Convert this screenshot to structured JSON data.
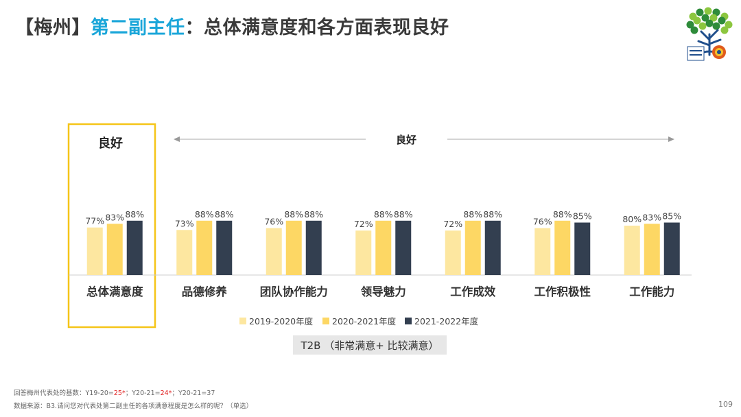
{
  "title": {
    "bracket": "【梅州】",
    "subject": "第二副主任",
    "rest": "：总体满意度和各方面表现良好"
  },
  "chart_data": {
    "type": "bar",
    "categories": [
      "总体满意度",
      "品德修养",
      "团队协作能力",
      "领导魅力",
      "工作成效",
      "工作积极性",
      "工作能力"
    ],
    "series": [
      {
        "name": "2019-2020年度",
        "color": "#fde7a0",
        "values": [
          77,
          73,
          76,
          72,
          72,
          76,
          80
        ]
      },
      {
        "name": "2020-2021年度",
        "color": "#fdd764",
        "values": [
          83,
          88,
          88,
          88,
          88,
          88,
          83
        ]
      },
      {
        "name": "2021-2022年度",
        "color": "#333f50",
        "values": [
          88,
          88,
          88,
          88,
          88,
          85,
          85
        ]
      }
    ],
    "value_suffix": "%",
    "legend_position": "bottom",
    "annotations": {
      "highlight_label": "良好",
      "range_label": "良好"
    }
  },
  "t2b_label": "T2B （非常满意+ 比较满意）",
  "footnotes": {
    "base_prefix": "回答梅州代表处的基数：Y19-20=",
    "base_y1920": "25*",
    "base_mid": "；Y20-21=",
    "base_y2021": "24*",
    "base_suffix": "；Y20-21=37",
    "source": "数据来源：B3.请问您对代表处第二副主任的各项满意程度是怎么样的呢？（单选）"
  },
  "page_number": "109",
  "logo": {
    "icon": "tree-logo-icon",
    "colors": [
      "#8cc63f",
      "#2e8b3a",
      "#1f4e8c",
      "#e05a1c",
      "#f2c12e"
    ]
  }
}
